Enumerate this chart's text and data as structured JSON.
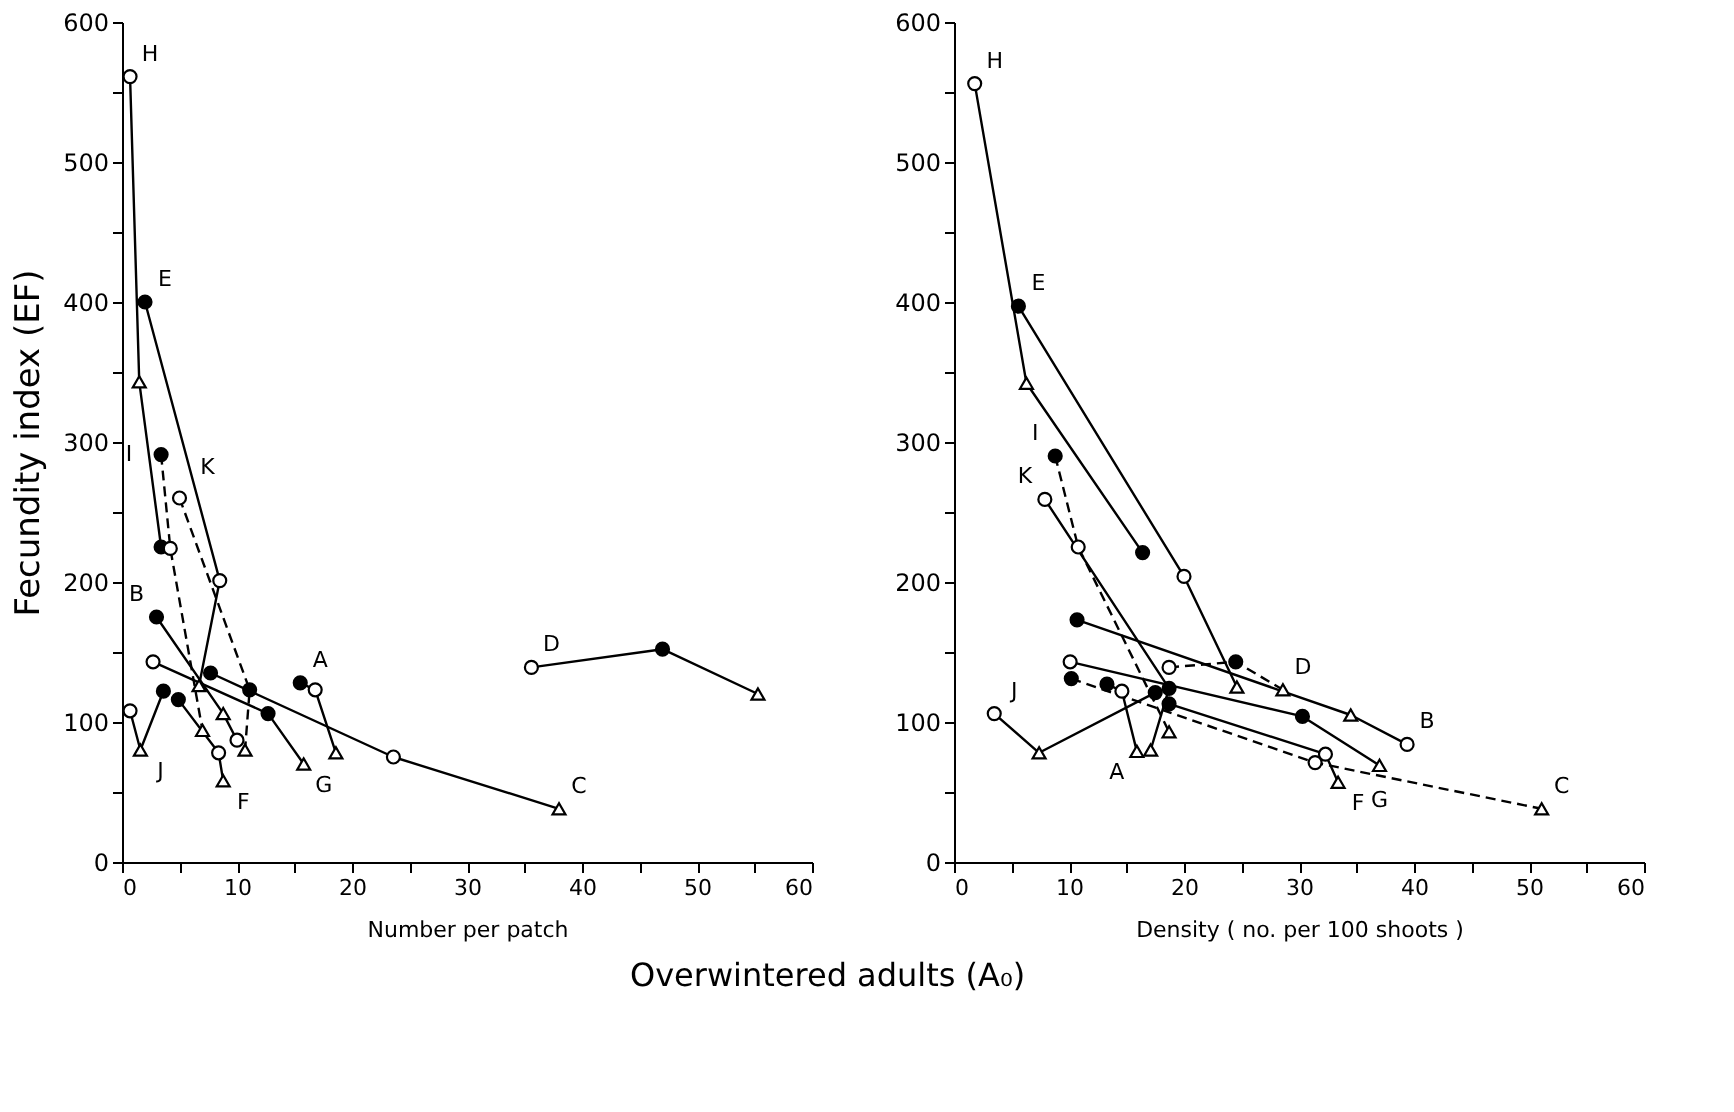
{
  "chart_data": [
    {
      "type": "line",
      "xlabel": "Number per patch",
      "ylabel": "Fecundity index (EF)",
      "xlim": [
        0,
        60
      ],
      "ylim": [
        0,
        600
      ],
      "xticks": [
        0,
        {
          "value": 5,
          "label": null
        },
        10,
        {
          "value": 15,
          "label": null
        },
        20,
        {
          "value": 25,
          "label": null
        },
        30,
        {
          "value": 35,
          "label": null
        },
        40,
        {
          "value": 45,
          "label": null
        },
        50,
        {
          "value": 55,
          "label": null
        },
        60
      ],
      "yticks": [
        0,
        {
          "value": 50,
          "label": null
        },
        100,
        {
          "value": 150,
          "label": null
        },
        200,
        {
          "value": 250,
          "label": null
        },
        300,
        {
          "value": 350,
          "label": null
        },
        400,
        {
          "value": 450,
          "label": null
        },
        500,
        {
          "value": 550,
          "label": null
        },
        600
      ],
      "series": [
        {
          "type": "line",
          "color": "#000000",
          "line_style": "solid",
          "x": [
            0.7,
            1.5,
            3.4
          ],
          "values": [
            561,
            343,
            225
          ]
        },
        {
          "type": "line",
          "color": "#000000",
          "line_style": "solid",
          "x": [
            2.0,
            8.5,
            6.7
          ],
          "values": [
            400,
            201,
            126
          ]
        },
        {
          "type": "line",
          "color": "#000000",
          "line_style": "dashed",
          "x": [
            3.4,
            4.2,
            7.0
          ],
          "values": [
            291,
            224,
            94
          ]
        },
        {
          "type": "line",
          "color": "#000000",
          "line_style": "dashed",
          "x": [
            5.0,
            11.1,
            10.7
          ],
          "values": [
            260,
            123,
            80
          ]
        },
        {
          "type": "line",
          "color": "#000000",
          "line_style": "solid",
          "x": [
            15.5,
            16.8,
            18.6
          ],
          "values": [
            128,
            123,
            78
          ]
        },
        {
          "type": "line",
          "color": "#000000",
          "line_style": "solid",
          "x": [
            3.0,
            8.8,
            10.0
          ],
          "values": [
            175,
            106,
            87
          ]
        },
        {
          "type": "line",
          "color": "#000000",
          "line_style": "solid",
          "x": [
            7.7,
            23.6,
            38.0
          ],
          "values": [
            135,
            75,
            38
          ]
        },
        {
          "type": "line",
          "color": "#000000",
          "line_style": "solid",
          "x": [
            35.6,
            47.0,
            55.3
          ],
          "values": [
            139,
            152,
            120
          ]
        },
        {
          "type": "line",
          "color": "#000000",
          "line_style": "solid",
          "x": [
            4.9,
            8.4,
            8.8
          ],
          "values": [
            116,
            78,
            58
          ]
        },
        {
          "type": "line",
          "color": "#000000",
          "line_style": "solid",
          "x": [
            2.7,
            12.7,
            15.8
          ],
          "values": [
            143,
            106,
            70
          ]
        },
        {
          "type": "line",
          "color": "#000000",
          "line_style": "solid",
          "x": [
            0.7,
            1.6,
            3.6
          ],
          "values": [
            108,
            80,
            122
          ]
        },
        {
          "type": "scatter",
          "marker": "circle",
          "color": "#000000",
          "x": [
            3.4,
            2.0,
            3.4,
            11.1,
            15.5,
            3.0,
            7.7,
            47.0,
            4.9,
            12.7,
            3.6
          ],
          "values": [
            225,
            400,
            291,
            123,
            128,
            175,
            135,
            152,
            116,
            106,
            122
          ]
        },
        {
          "type": "scatter",
          "marker": "circle",
          "color": "#ffffff",
          "x": [
            0.7,
            8.5,
            4.2,
            5.0,
            16.8,
            10.0,
            23.6,
            35.6,
            8.4,
            2.7,
            0.7
          ],
          "values": [
            561,
            201,
            224,
            260,
            123,
            87,
            75,
            139,
            78,
            143,
            108
          ]
        },
        {
          "type": "scatter",
          "marker": "triangle",
          "color": "#ffffff",
          "x": [
            1.5,
            6.7,
            7.0,
            10.7,
            18.6,
            8.8,
            38.0,
            55.3,
            8.8,
            15.8,
            1.6
          ],
          "values": [
            343,
            126,
            94,
            80,
            78,
            106,
            38,
            120,
            58,
            70,
            80
          ]
        }
      ],
      "annotations": [
        "Overwintered adults (A₀)",
        {
          "text": "H",
          "x": 0.7,
          "y": 561
        },
        {
          "text": "E",
          "x": 2.0,
          "y": 400
        },
        {
          "text": "I",
          "x": 3.4,
          "y": 291
        },
        {
          "text": "K",
          "x": 5.0,
          "y": 260
        },
        {
          "text": "B",
          "x": 3.0,
          "y": 175
        },
        {
          "text": "J",
          "x": 1.6,
          "y": 80
        },
        {
          "text": "F",
          "x": 8.8,
          "y": 58
        },
        {
          "text": "G",
          "x": 15.8,
          "y": 70
        },
        {
          "text": "A",
          "x": 15.5,
          "y": 128
        },
        {
          "text": "C",
          "x": 38.0,
          "y": 38
        },
        {
          "text": "D",
          "x": 35.6,
          "y": 139
        }
      ]
    },
    {
      "type": "line",
      "xlabel": "Density ( no. per 100 shoots )",
      "xlim": [
        0,
        60
      ],
      "ylim": [
        0,
        600
      ],
      "xticks": [
        0,
        {
          "value": 5,
          "label": null
        },
        10,
        {
          "value": 15,
          "label": null
        },
        20,
        {
          "value": 25,
          "label": null
        },
        30,
        {
          "value": 35,
          "label": null
        },
        40,
        {
          "value": 45,
          "label": null
        },
        50,
        {
          "value": 55,
          "label": null
        },
        60
      ],
      "yticks": [
        0,
        {
          "value": 50,
          "label": null
        },
        100,
        {
          "value": 150,
          "label": null
        },
        200,
        {
          "value": 250,
          "label": null
        },
        300,
        {
          "value": 350,
          "label": null
        },
        400,
        {
          "value": 450,
          "label": null
        },
        500,
        {
          "value": 550,
          "label": null
        },
        600
      ],
      "series": [
        {
          "type": "line",
          "color": "#000000",
          "line_style": "solid",
          "x": [
            1.8,
            6.3,
            16.4
          ],
          "values": [
            556,
            342,
            221
          ]
        },
        {
          "type": "line",
          "color": "#000000",
          "line_style": "solid",
          "x": [
            5.6,
            20.0,
            24.6
          ],
          "values": [
            397,
            204,
            125
          ]
        },
        {
          "type": "line",
          "color": "#000000",
          "line_style": "dashed",
          "x": [
            8.8,
            10.8,
            18.7
          ],
          "values": [
            290,
            225,
            93
          ]
        },
        {
          "type": "line",
          "color": "#000000",
          "line_style": "solid",
          "x": [
            7.9,
            18.7,
            17.1
          ],
          "values": [
            259,
            124,
            80
          ]
        },
        {
          "type": "line",
          "color": "#000000",
          "line_style": "solid",
          "x": [
            13.3,
            14.6,
            15.9
          ],
          "values": [
            127,
            122,
            79
          ]
        },
        {
          "type": "line",
          "color": "#000000",
          "line_style": "solid",
          "x": [
            10.7,
            34.5,
            39.4
          ],
          "values": [
            173,
            105,
            84
          ]
        },
        {
          "type": "line",
          "color": "#000000",
          "line_style": "dashed",
          "x": [
            10.2,
            31.4,
            51.1
          ],
          "values": [
            131,
            71,
            38
          ]
        },
        {
          "type": "line",
          "color": "#000000",
          "line_style": "dashed",
          "x": [
            18.7,
            24.5,
            28.6
          ],
          "values": [
            139,
            143,
            123
          ]
        },
        {
          "type": "line",
          "color": "#000000",
          "line_style": "solid",
          "x": [
            18.7,
            32.3,
            33.4
          ],
          "values": [
            113,
            77,
            57
          ]
        },
        {
          "type": "line",
          "color": "#000000",
          "line_style": "solid",
          "x": [
            10.1,
            30.3,
            37.0
          ],
          "values": [
            143,
            104,
            69
          ]
        },
        {
          "type": "line",
          "color": "#000000",
          "line_style": "solid",
          "x": [
            3.5,
            7.4,
            17.5
          ],
          "values": [
            106,
            78,
            121
          ]
        },
        {
          "type": "scatter",
          "marker": "circle",
          "color": "#000000",
          "x": [
            16.4,
            5.6,
            8.8,
            18.7,
            13.3,
            10.7,
            10.2,
            24.5,
            18.7,
            30.3,
            17.5
          ],
          "values": [
            221,
            397,
            290,
            124,
            127,
            173,
            131,
            143,
            113,
            104,
            121
          ]
        },
        {
          "type": "scatter",
          "marker": "circle",
          "color": "#ffffff",
          "x": [
            1.8,
            20.0,
            10.8,
            7.9,
            14.6,
            39.4,
            31.4,
            18.7,
            32.3,
            10.1,
            3.5
          ],
          "values": [
            556,
            204,
            225,
            259,
            122,
            84,
            71,
            139,
            77,
            143,
            106
          ]
        },
        {
          "type": "scatter",
          "marker": "triangle",
          "color": "#ffffff",
          "x": [
            6.3,
            24.6,
            18.7,
            17.1,
            15.9,
            34.5,
            51.1,
            28.6,
            33.4,
            37.0,
            7.4
          ],
          "values": [
            342,
            125,
            93,
            80,
            79,
            105,
            38,
            123,
            57,
            69,
            78
          ]
        }
      ],
      "annotations": [
        {
          "text": "H",
          "x": 1.8,
          "y": 556
        },
        {
          "text": "E",
          "x": 5.6,
          "y": 397
        },
        {
          "text": "I",
          "x": 8.8,
          "y": 290
        },
        {
          "text": "K",
          "x": 7.9,
          "y": 259
        },
        {
          "text": "J",
          "x": 3.5,
          "y": 106
        },
        {
          "text": "A",
          "x": 15.9,
          "y": 79
        },
        {
          "text": "D",
          "x": 28.6,
          "y": 123
        },
        {
          "text": "B",
          "x": 39.4,
          "y": 84
        },
        {
          "text": "G",
          "x": 37.0,
          "y": 69
        },
        {
          "text": "F",
          "x": 33.4,
          "y": 57
        },
        {
          "text": "C",
          "x": 51.1,
          "y": 38
        }
      ]
    }
  ]
}
